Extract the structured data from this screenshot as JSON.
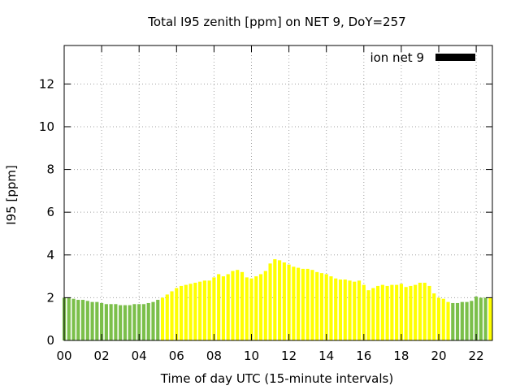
{
  "chart_data": {
    "type": "bar",
    "title": "Total I95 zenith [ppm] on NET 9, DoY=257",
    "xlabel": "Time of day UTC (15-minute intervals)",
    "ylabel": "I95 [ppm]",
    "x_range": [
      0,
      22.75
    ],
    "ylim": [
      0,
      13.8
    ],
    "x_ticks": [
      "00",
      "02",
      "04",
      "06",
      "08",
      "10",
      "12",
      "14",
      "16",
      "18",
      "20",
      "22"
    ],
    "y_ticks": [
      "0",
      "2",
      "4",
      "6",
      "8",
      "10",
      "12"
    ],
    "grid": true,
    "legend": {
      "label": "ion net 9",
      "color": "#000000",
      "placement": "top-right"
    },
    "colors": {
      "green": "#7bbf4a",
      "yellow": "#ffff00"
    },
    "color_sequence": "GGGGGGGGGGGGGGGGGGGGGYYYYYYYYYYYYYYYYYYYYYYYYYYYYYYYYYYYYYYYYYYYYYYYYYYYYYYYYYYYYYYGGGGGGGGYYYGY",
    "x": [
      0.0,
      0.25,
      0.5,
      0.75,
      1.0,
      1.25,
      1.5,
      1.75,
      2.0,
      2.25,
      2.5,
      2.75,
      3.0,
      3.25,
      3.5,
      3.75,
      4.0,
      4.25,
      4.5,
      4.75,
      5.0,
      5.25,
      5.5,
      5.75,
      6.0,
      6.25,
      6.5,
      6.75,
      7.0,
      7.25,
      7.5,
      7.75,
      8.0,
      8.25,
      8.5,
      8.75,
      9.0,
      9.25,
      9.5,
      9.75,
      10.0,
      10.25,
      10.5,
      10.75,
      11.0,
      11.25,
      11.5,
      11.75,
      12.0,
      12.25,
      12.5,
      12.75,
      13.0,
      13.25,
      13.5,
      13.75,
      14.0,
      14.25,
      14.5,
      14.75,
      15.0,
      15.25,
      15.5,
      15.75,
      16.0,
      16.25,
      16.5,
      16.75,
      17.0,
      17.25,
      17.5,
      17.75,
      18.0,
      18.25,
      18.5,
      18.75,
      19.0,
      19.25,
      19.5,
      19.75,
      20.0,
      20.25,
      20.5,
      20.75,
      21.0,
      21.25,
      21.5,
      21.75,
      22.0,
      22.25,
      22.5,
      22.75
    ],
    "values": [
      2.0,
      2.0,
      1.95,
      1.9,
      1.9,
      1.85,
      1.8,
      1.8,
      1.75,
      1.7,
      1.7,
      1.7,
      1.65,
      1.65,
      1.65,
      1.7,
      1.7,
      1.7,
      1.75,
      1.8,
      1.9,
      2.0,
      2.15,
      2.3,
      2.45,
      2.55,
      2.6,
      2.65,
      2.7,
      2.75,
      2.8,
      2.8,
      2.95,
      3.1,
      3.0,
      3.1,
      3.25,
      3.3,
      3.2,
      2.95,
      2.9,
      3.0,
      3.1,
      3.25,
      3.6,
      3.8,
      3.75,
      3.65,
      3.55,
      3.45,
      3.4,
      3.35,
      3.35,
      3.3,
      3.2,
      3.15,
      3.1,
      3.0,
      2.9,
      2.85,
      2.85,
      2.8,
      2.75,
      2.8,
      2.6,
      2.35,
      2.45,
      2.55,
      2.6,
      2.55,
      2.6,
      2.6,
      2.65,
      2.5,
      2.55,
      2.6,
      2.7,
      2.7,
      2.55,
      2.2,
      2.0,
      1.95,
      1.8,
      1.75,
      1.75,
      1.8,
      1.8,
      1.85,
      2.05,
      2.0,
      2.0,
      2.0
    ]
  }
}
